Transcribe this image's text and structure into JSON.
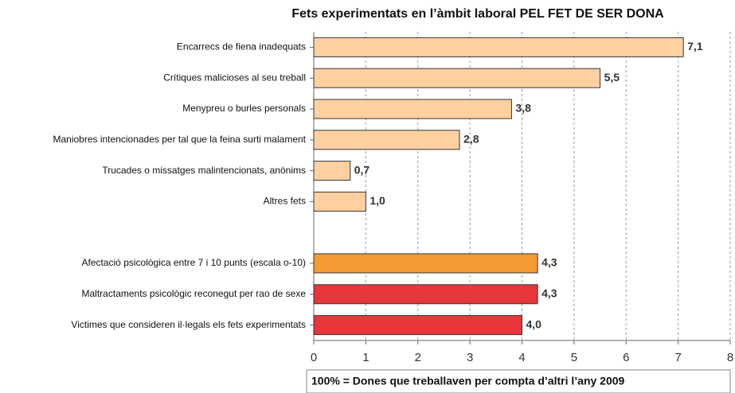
{
  "chart_data": {
    "type": "barh",
    "title": "Fets experimentats en l’àmbit laboral PEL FET DE SER DONA",
    "categories": [
      "Encarrecs de fiena inadequats",
      "Crítiques malicioses al seu treball",
      "Menypreu o burles personals",
      "Maniobres intencionades per tal que la feina surti malament",
      "Trucades o missatges malintencionats, anònims",
      "Altres fets",
      null,
      "Afectació psicològica entre 7 i 10 punts (escala o-10)",
      "Maltractaments psicològic reconegut per rao de sexe",
      "Victimes que consideren il·legals els fets experimentats"
    ],
    "values": [
      7.1,
      5.5,
      3.8,
      2.8,
      0.7,
      1.0,
      null,
      4.3,
      4.3,
      4.0
    ],
    "value_labels": [
      "7,1",
      "5,5",
      "3,8",
      "2,8",
      "0,7",
      "1,0",
      null,
      "4,3",
      "4,3",
      "4,0"
    ],
    "colors": [
      "#ffd0a0",
      "#ffd0a0",
      "#ffd0a0",
      "#ffd0a0",
      "#ffd0a0",
      "#ffd0a0",
      null,
      "#f59a35",
      "#e8363a",
      "#e8363a"
    ],
    "xlim": [
      0,
      8
    ],
    "xticks": [
      0,
      1,
      2,
      3,
      4,
      5,
      6,
      7,
      8
    ],
    "grid": true,
    "note": "100% = Dones que treballaven per compta d’altri  l’any 2009"
  }
}
